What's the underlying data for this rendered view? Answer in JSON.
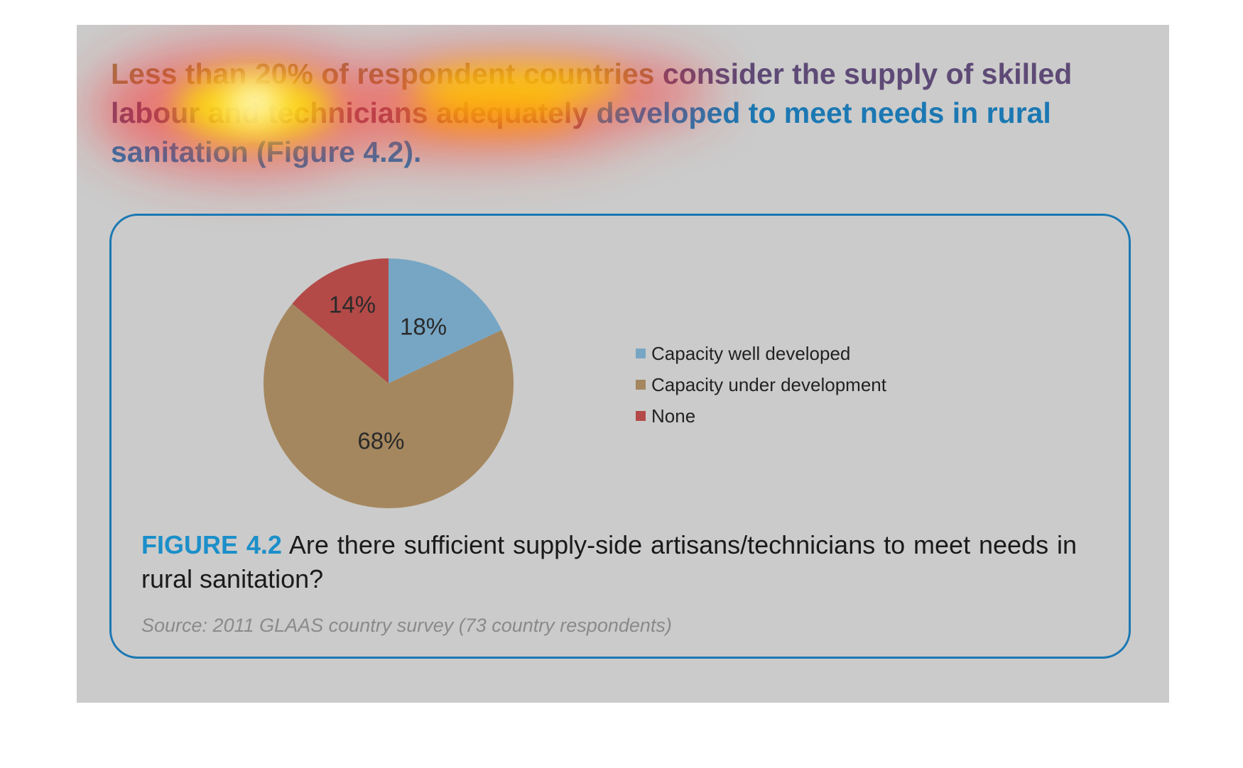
{
  "headline": {
    "part1": "Less than 20% of respondent countries",
    "part2": " consider the supply of skilled labour",
    "part3": " and technicians adequately",
    "part4": " developed to meet needs in rural sanitation (Figure 4.2)."
  },
  "colors": {
    "accent": "#1b78b3",
    "panel_background": "#cbcbcb",
    "slice_well_developed": "#77a6c4",
    "slice_under_development": "#a5875f",
    "slice_none": "#b34a48"
  },
  "chart_data": {
    "type": "pie",
    "categories": [
      "Capacity well developed",
      "Capacity under development",
      "None"
    ],
    "values": [
      18,
      68,
      14
    ],
    "labels": [
      "18%",
      "68%",
      "14%"
    ],
    "colors": [
      "#77a6c4",
      "#a5875f",
      "#b34a48"
    ],
    "legend_position": "right",
    "start": "top, clockwise"
  },
  "caption": {
    "figure_number": "FIGURE 4.2",
    "text": " Are there sufficient supply-side artisans/technicians to meet needs in rural sanitation?"
  },
  "source": "Source: 2011 GLAAS country survey (73 country respondents)"
}
